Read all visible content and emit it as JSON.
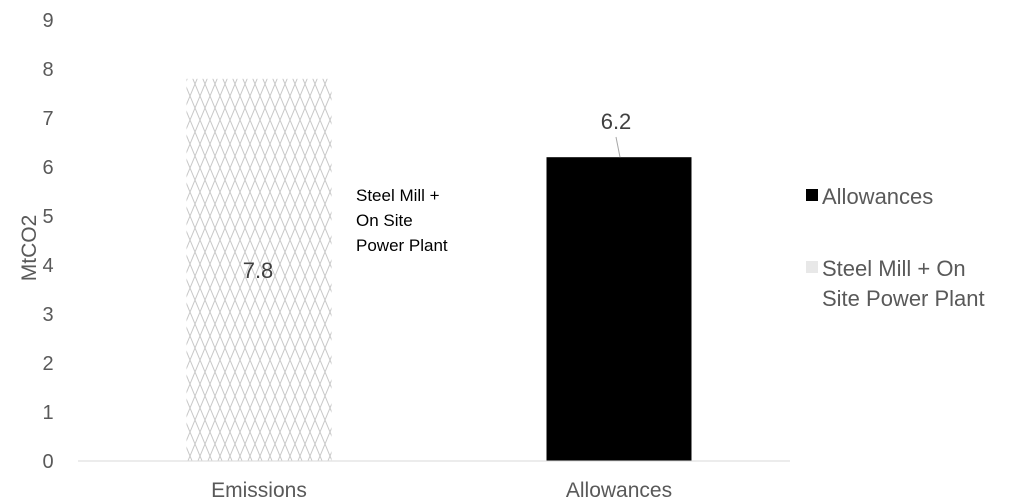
{
  "chart_data": {
    "type": "bar",
    "categories": [
      "Emissions",
      "Allowances"
    ],
    "series": [
      {
        "name": "Allowances",
        "values": [
          null,
          6.2
        ],
        "color": "#000000",
        "pattern": "solid"
      },
      {
        "name": "Steel Mill + On Site Power Plant",
        "values": [
          7.8,
          null
        ],
        "color": "#d9d9d9",
        "pattern": "diamond-hatch"
      }
    ],
    "data_labels": [
      "7.8",
      "6.2"
    ],
    "ylabel": "MtCO2",
    "ylim": [
      0,
      9
    ],
    "yticks": [
      "0",
      "1",
      "2",
      "3",
      "4",
      "5",
      "6",
      "7",
      "8",
      "9"
    ],
    "annotation": [
      "Steel Mill +",
      "On Site",
      "Power Plant"
    ],
    "legend": {
      "position": "right",
      "entries": [
        {
          "lines": [
            "Allowances"
          ],
          "color": "#000000"
        },
        {
          "lines": [
            "Steel Mill + On",
            "Site Power Plant"
          ],
          "color": "#e8e8e8"
        }
      ]
    },
    "grid": false
  }
}
